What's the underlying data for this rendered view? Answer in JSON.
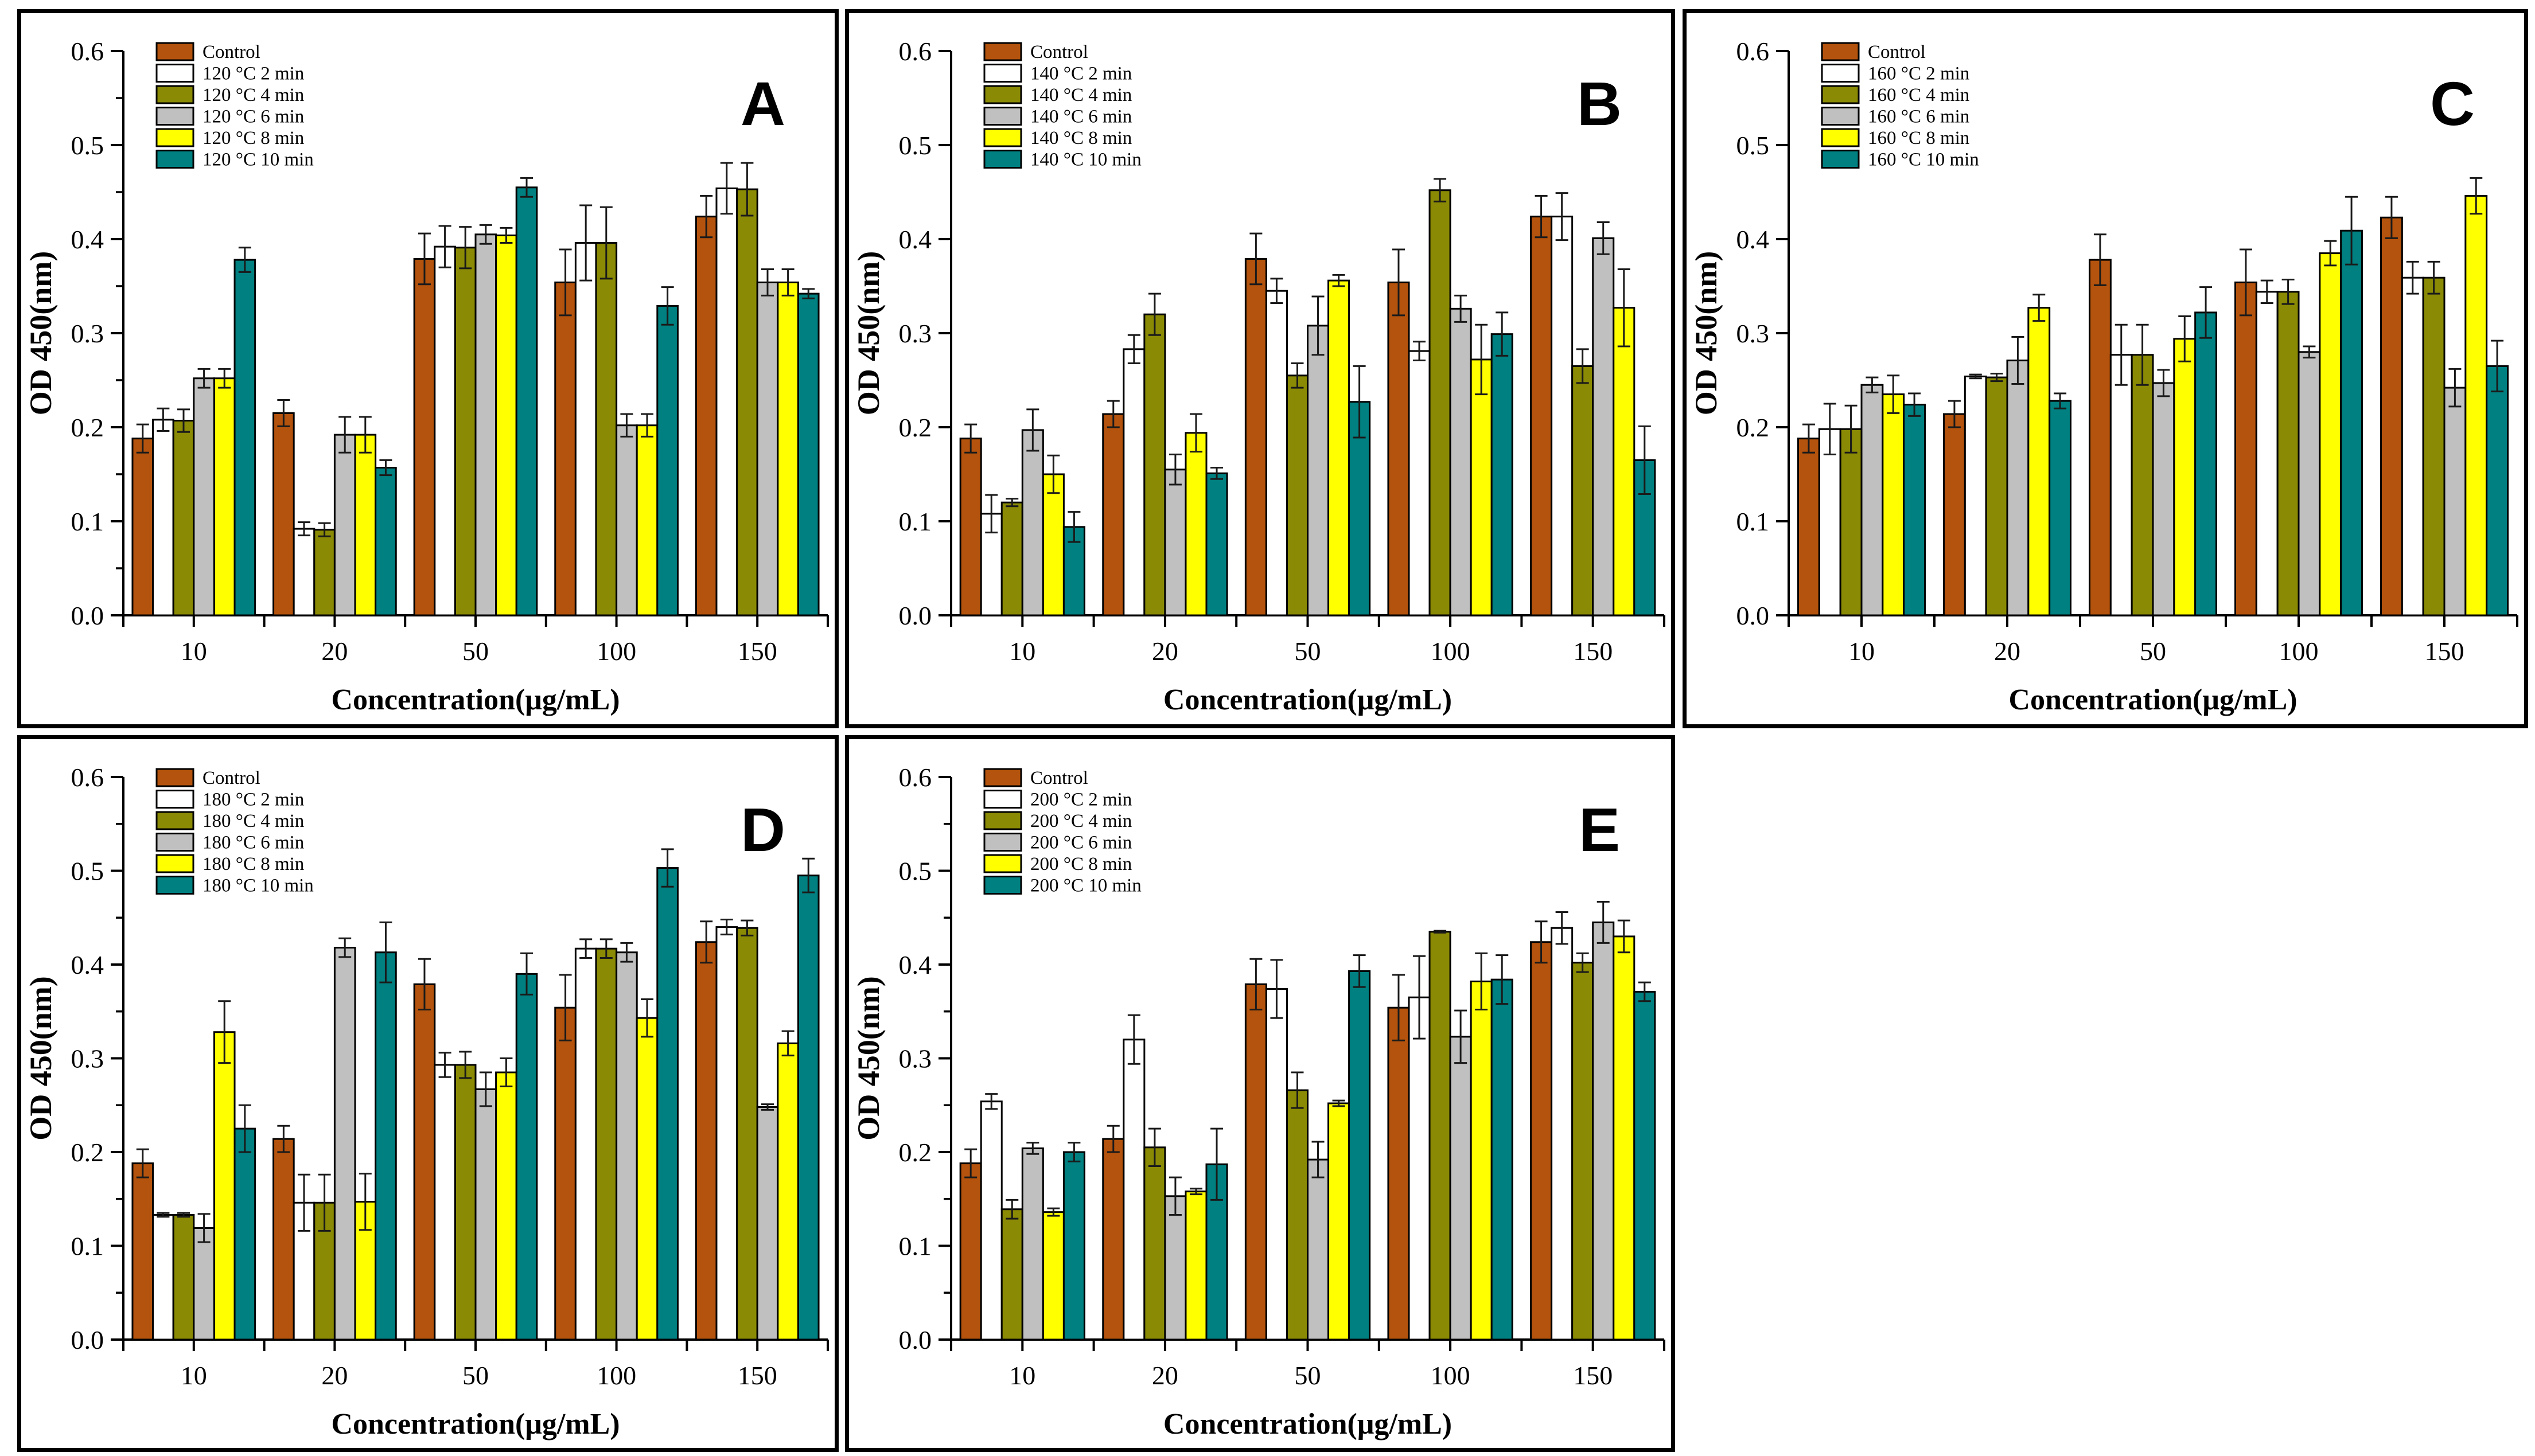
{
  "figure": {
    "background": "#ffffff",
    "axis_color": "#000000",
    "error_bar_color": "#1a1a1a",
    "bar_outline_color": "#000000",
    "yticks": [
      "0.0",
      "0.1",
      "0.2",
      "0.3",
      "0.4",
      "0.5",
      "0.6"
    ],
    "colors": {
      "control": "#B4530D",
      "t2min": "#FFFFFF",
      "t4min": "#8A8A05",
      "t6min": "#C0C0C0",
      "t8min": "#FFFF00",
      "t10min": "#008080"
    }
  },
  "chart_data": [
    {
      "id": "A",
      "type": "bar",
      "panel_label": "A",
      "temperature": "120 °C",
      "xlabel": "Concentration(μg/mL)",
      "ylabel": "OD 450(nm)",
      "ylim": [
        0,
        0.6
      ],
      "ytick_step": 0.1,
      "minor_ticks": true,
      "grid": false,
      "legend_position": "top-left",
      "categories": [
        "10",
        "20",
        "50",
        "100",
        "150"
      ],
      "series": [
        {
          "name": "Control",
          "color": "#B4530D",
          "values": [
            0.188,
            0.215,
            0.379,
            0.354,
            0.424
          ],
          "errors": [
            0.015,
            0.014,
            0.027,
            0.035,
            0.022
          ]
        },
        {
          "name": "120 °C 2 min",
          "color": "#FFFFFF",
          "values": [
            0.208,
            0.092,
            0.392,
            0.396,
            0.454
          ],
          "errors": [
            0.012,
            0.007,
            0.022,
            0.04,
            0.027
          ]
        },
        {
          "name": "120 °C 4 min",
          "color": "#8A8A05",
          "values": [
            0.207,
            0.091,
            0.391,
            0.396,
            0.453
          ],
          "errors": [
            0.012,
            0.007,
            0.022,
            0.038,
            0.028
          ]
        },
        {
          "name": "120 °C 6 min",
          "color": "#C0C0C0",
          "values": [
            0.252,
            0.192,
            0.405,
            0.202,
            0.354
          ],
          "errors": [
            0.01,
            0.019,
            0.01,
            0.012,
            0.014
          ]
        },
        {
          "name": "120 °C 8 min",
          "color": "#FFFF00",
          "values": [
            0.252,
            0.192,
            0.404,
            0.202,
            0.354
          ],
          "errors": [
            0.01,
            0.019,
            0.008,
            0.012,
            0.014
          ]
        },
        {
          "name": "120 °C 10 min",
          "color": "#008080",
          "values": [
            0.378,
            0.157,
            0.455,
            0.329,
            0.342
          ],
          "errors": [
            0.013,
            0.008,
            0.01,
            0.02,
            0.005
          ]
        }
      ]
    },
    {
      "id": "B",
      "type": "bar",
      "panel_label": "B",
      "temperature": "140 °C",
      "xlabel": "Concentration(μg/mL)",
      "ylabel": "OD 450(nm)",
      "ylim": [
        0,
        0.6
      ],
      "ytick_step": 0.1,
      "minor_ticks": false,
      "grid": false,
      "legend_position": "top-left",
      "categories": [
        "10",
        "20",
        "50",
        "100",
        "150"
      ],
      "series": [
        {
          "name": "Control",
          "color": "#B4530D",
          "values": [
            0.188,
            0.214,
            0.379,
            0.354,
            0.424
          ],
          "errors": [
            0.015,
            0.014,
            0.027,
            0.035,
            0.022
          ]
        },
        {
          "name": "140 °C 2 min",
          "color": "#FFFFFF",
          "values": [
            0.108,
            0.283,
            0.345,
            0.281,
            0.424
          ],
          "errors": [
            0.02,
            0.015,
            0.013,
            0.01,
            0.025
          ]
        },
        {
          "name": "140 °C 4 min",
          "color": "#8A8A05",
          "values": [
            0.12,
            0.32,
            0.255,
            0.452,
            0.265
          ],
          "errors": [
            0.004,
            0.022,
            0.013,
            0.012,
            0.018
          ]
        },
        {
          "name": "140 °C 6 min",
          "color": "#C0C0C0",
          "values": [
            0.197,
            0.155,
            0.308,
            0.326,
            0.401
          ],
          "errors": [
            0.022,
            0.016,
            0.031,
            0.014,
            0.017
          ]
        },
        {
          "name": "140 °C 8 min",
          "color": "#FFFF00",
          "values": [
            0.15,
            0.194,
            0.356,
            0.272,
            0.327
          ],
          "errors": [
            0.02,
            0.02,
            0.006,
            0.037,
            0.041
          ]
        },
        {
          "name": "140 °C 10 min",
          "color": "#008080",
          "values": [
            0.094,
            0.151,
            0.227,
            0.299,
            0.165
          ],
          "errors": [
            0.016,
            0.006,
            0.038,
            0.023,
            0.036
          ]
        }
      ]
    },
    {
      "id": "C",
      "type": "bar",
      "panel_label": "C",
      "temperature": "160 °C",
      "xlabel": "Concentration(μg/mL)",
      "ylabel": "OD 450(nm)",
      "ylim": [
        0,
        0.6
      ],
      "ytick_step": 0.1,
      "minor_ticks": false,
      "grid": false,
      "legend_position": "top-left",
      "categories": [
        "10",
        "20",
        "50",
        "100",
        "150"
      ],
      "series": [
        {
          "name": "Control",
          "color": "#B4530D",
          "values": [
            0.188,
            0.214,
            0.378,
            0.354,
            0.423
          ],
          "errors": [
            0.015,
            0.014,
            0.027,
            0.035,
            0.022
          ]
        },
        {
          "name": "160 °C 2 min",
          "color": "#FFFFFF",
          "values": [
            0.198,
            0.254,
            0.277,
            0.344,
            0.359
          ],
          "errors": [
            0.027,
            0.002,
            0.032,
            0.012,
            0.017
          ]
        },
        {
          "name": "160 °C 4 min",
          "color": "#8A8A05",
          "values": [
            0.198,
            0.253,
            0.277,
            0.344,
            0.359
          ],
          "errors": [
            0.025,
            0.004,
            0.032,
            0.013,
            0.017
          ]
        },
        {
          "name": "160 °C 6 min",
          "color": "#C0C0C0",
          "values": [
            0.245,
            0.271,
            0.247,
            0.28,
            0.242
          ],
          "errors": [
            0.008,
            0.025,
            0.014,
            0.006,
            0.02
          ]
        },
        {
          "name": "160 °C 8 min",
          "color": "#FFFF00",
          "values": [
            0.235,
            0.327,
            0.294,
            0.385,
            0.446
          ],
          "errors": [
            0.02,
            0.014,
            0.024,
            0.013,
            0.019
          ]
        },
        {
          "name": "160 °C 10 min",
          "color": "#008080",
          "values": [
            0.224,
            0.228,
            0.322,
            0.409,
            0.265
          ],
          "errors": [
            0.012,
            0.008,
            0.027,
            0.036,
            0.027
          ]
        }
      ]
    },
    {
      "id": "D",
      "type": "bar",
      "panel_label": "D",
      "temperature": "180 °C",
      "xlabel": "Concentration(μg/mL)",
      "ylabel": "OD 450(nm)",
      "ylim": [
        0,
        0.6
      ],
      "ytick_step": 0.1,
      "minor_ticks": true,
      "grid": false,
      "legend_position": "top-left",
      "categories": [
        "10",
        "20",
        "50",
        "100",
        "150"
      ],
      "series": [
        {
          "name": "Control",
          "color": "#B4530D",
          "values": [
            0.188,
            0.214,
            0.379,
            0.354,
            0.424
          ],
          "errors": [
            0.015,
            0.014,
            0.027,
            0.035,
            0.022
          ]
        },
        {
          "name": "180 °C 2 min",
          "color": "#FFFFFF",
          "values": [
            0.133,
            0.146,
            0.293,
            0.417,
            0.44
          ],
          "errors": [
            0.002,
            0.03,
            0.013,
            0.01,
            0.008
          ]
        },
        {
          "name": "180 °C 4 min",
          "color": "#8A8A05",
          "values": [
            0.133,
            0.146,
            0.293,
            0.417,
            0.439
          ],
          "errors": [
            0.002,
            0.03,
            0.014,
            0.01,
            0.008
          ]
        },
        {
          "name": "180 °C 6 min",
          "color": "#C0C0C0",
          "values": [
            0.119,
            0.418,
            0.267,
            0.413,
            0.248
          ],
          "errors": [
            0.015,
            0.01,
            0.018,
            0.01,
            0.003
          ]
        },
        {
          "name": "180 °C 8 min",
          "color": "#FFFF00",
          "values": [
            0.328,
            0.147,
            0.285,
            0.343,
            0.316
          ],
          "errors": [
            0.033,
            0.03,
            0.015,
            0.02,
            0.013
          ]
        },
        {
          "name": "180 °C 10 min",
          "color": "#008080",
          "values": [
            0.225,
            0.413,
            0.39,
            0.503,
            0.495
          ],
          "errors": [
            0.025,
            0.032,
            0.022,
            0.02,
            0.018
          ]
        }
      ]
    },
    {
      "id": "E",
      "type": "bar",
      "panel_label": "E",
      "temperature": "200 °C",
      "xlabel": "Concentration(μg/mL)",
      "ylabel": "OD 450(nm)",
      "ylim": [
        0,
        0.6
      ],
      "ytick_step": 0.1,
      "minor_ticks": true,
      "grid": false,
      "legend_position": "top-left",
      "categories": [
        "10",
        "20",
        "50",
        "100",
        "150"
      ],
      "series": [
        {
          "name": "Control",
          "color": "#B4530D",
          "values": [
            0.188,
            0.214,
            0.379,
            0.354,
            0.424
          ],
          "errors": [
            0.015,
            0.014,
            0.027,
            0.035,
            0.022
          ]
        },
        {
          "name": "200 °C 2 min",
          "color": "#FFFFFF",
          "values": [
            0.254,
            0.32,
            0.374,
            0.365,
            0.439
          ],
          "errors": [
            0.008,
            0.026,
            0.031,
            0.044,
            0.017
          ]
        },
        {
          "name": "200 °C 4 min",
          "color": "#8A8A05",
          "values": [
            0.139,
            0.205,
            0.266,
            0.435,
            0.402
          ],
          "errors": [
            0.01,
            0.02,
            0.019,
            0.001,
            0.01
          ]
        },
        {
          "name": "200 °C 6 min",
          "color": "#C0C0C0",
          "values": [
            0.204,
            0.153,
            0.192,
            0.323,
            0.445
          ],
          "errors": [
            0.006,
            0.02,
            0.019,
            0.028,
            0.022
          ]
        },
        {
          "name": "200 °C 8 min",
          "color": "#FFFF00",
          "values": [
            0.136,
            0.158,
            0.252,
            0.382,
            0.43
          ],
          "errors": [
            0.004,
            0.003,
            0.003,
            0.03,
            0.017
          ]
        },
        {
          "name": "200 °C 10 min",
          "color": "#008080",
          "values": [
            0.2,
            0.187,
            0.393,
            0.384,
            0.371
          ],
          "errors": [
            0.01,
            0.038,
            0.017,
            0.026,
            0.01
          ]
        }
      ]
    }
  ]
}
